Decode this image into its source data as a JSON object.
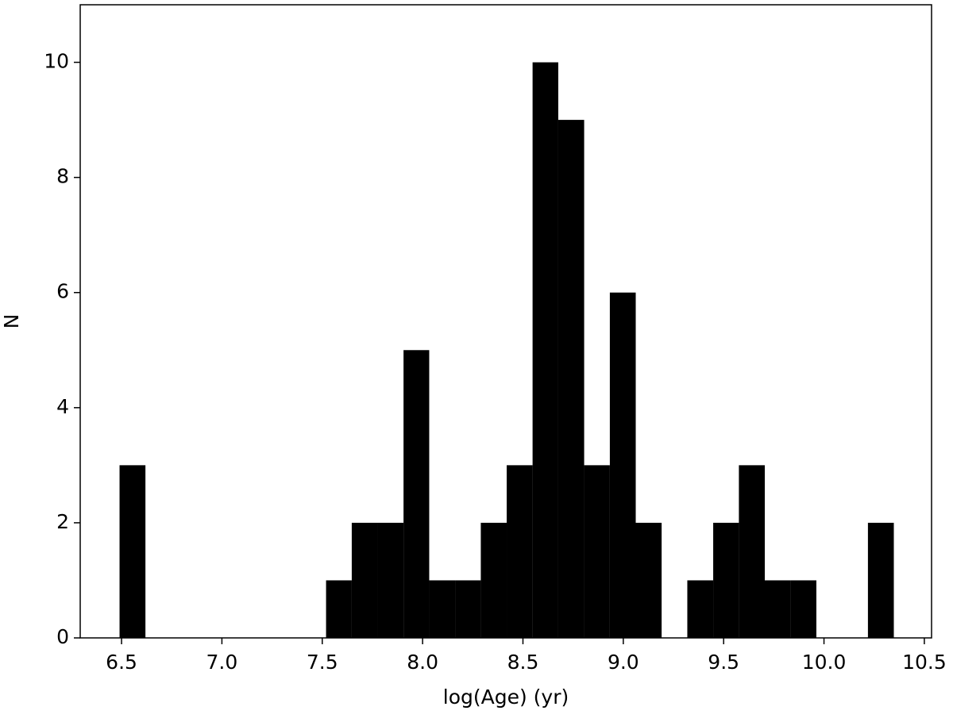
{
  "chart_data": {
    "type": "histogram",
    "xlabel": "log(Age) (yr)",
    "ylabel": "N",
    "color": "#000000",
    "bins": [
      6.49,
      6.619,
      6.747,
      6.876,
      7.004,
      7.133,
      7.262,
      7.39,
      7.519,
      7.647,
      7.776,
      7.905,
      8.033,
      8.162,
      8.29,
      8.419,
      8.548,
      8.676,
      8.805,
      8.933,
      9.062,
      9.191,
      9.319,
      9.448,
      9.576,
      9.705,
      9.834,
      9.962,
      10.091,
      10.219,
      10.348
    ],
    "counts": [
      3,
      0,
      0,
      0,
      0,
      0,
      0,
      0,
      1,
      2,
      2,
      5,
      1,
      1,
      2,
      3,
      10,
      9,
      3,
      6,
      2,
      0,
      1,
      2,
      3,
      1,
      1,
      0,
      0,
      2
    ],
    "xlim": [
      6.294,
      10.536
    ],
    "ylim": [
      0,
      11
    ],
    "xticks": [
      {
        "value": 6.5,
        "label": "6.5"
      },
      {
        "value": 7.0,
        "label": "7.0"
      },
      {
        "value": 7.5,
        "label": "7.5"
      },
      {
        "value": 8.0,
        "label": "8.0"
      },
      {
        "value": 8.5,
        "label": "8.5"
      },
      {
        "value": 9.0,
        "label": "9.0"
      },
      {
        "value": 9.5,
        "label": "9.5"
      },
      {
        "value": 10.0,
        "label": "10.0"
      },
      {
        "value": 10.5,
        "label": "10.5"
      }
    ],
    "yticks": [
      0,
      2,
      4,
      6,
      8,
      10
    ]
  }
}
